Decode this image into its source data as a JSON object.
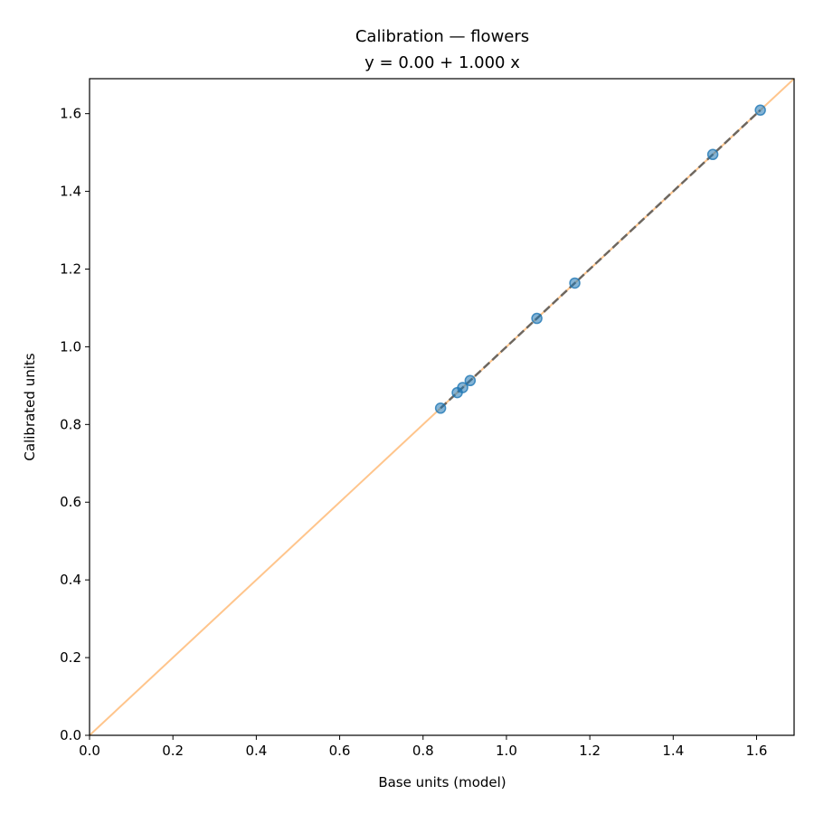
{
  "chart_data": {
    "type": "scatter",
    "title": "Calibration — flowers",
    "subtitle": "y = 0.00 + 1.000 x",
    "xlabel": "Base units (model)",
    "ylabel": "Calibrated units",
    "xlim": [
      0,
      1.69
    ],
    "ylim": [
      0,
      1.69
    ],
    "xticks": [
      "0.0",
      "0.2",
      "0.4",
      "0.6",
      "0.8",
      "1.0",
      "1.2",
      "1.4",
      "1.6"
    ],
    "yticks": [
      "0.0",
      "0.2",
      "0.4",
      "0.6",
      "0.8",
      "1.0",
      "1.2",
      "1.4",
      "1.6"
    ],
    "grid": false,
    "points": {
      "x": [
        0.842,
        0.882,
        0.895,
        0.913,
        1.073,
        1.164,
        1.495,
        1.609
      ],
      "y": [
        0.842,
        0.882,
        0.895,
        0.913,
        1.073,
        1.164,
        1.495,
        1.609
      ],
      "color": "#1f77b4"
    },
    "identity_line": {
      "x": [
        0,
        1.69
      ],
      "y": [
        0,
        1.69
      ],
      "color": "#ffbb78"
    },
    "fit_line": {
      "intercept": 0.0,
      "slope": 1.0,
      "x_range": [
        0.842,
        1.609
      ],
      "color": "#555555",
      "style": "dashed"
    }
  }
}
